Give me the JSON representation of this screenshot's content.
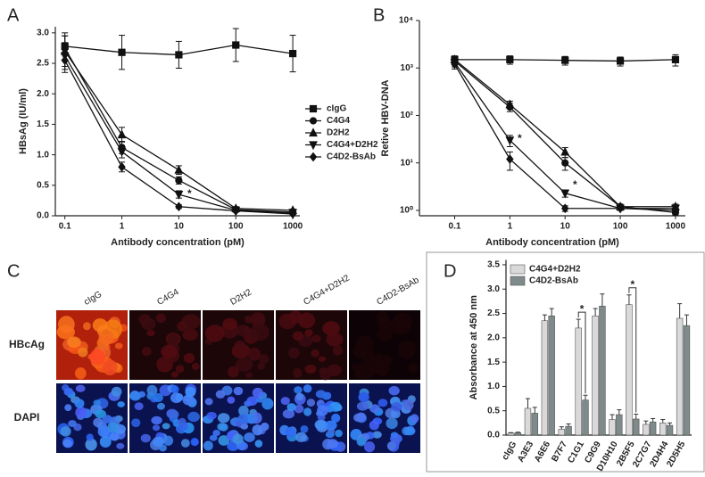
{
  "chart_data": [
    {
      "type": "line",
      "panel_label": "A",
      "xscale": "log",
      "yscale": "linear",
      "x_label": "Antibody concentration (pM)",
      "y_label": "HBsAg (IU/ml)",
      "x": [
        0.1,
        1,
        10,
        100,
        1000
      ],
      "xlim": [
        0.068,
        1330
      ],
      "xticks": [
        0.1,
        1,
        10,
        100,
        1000
      ],
      "ylim": [
        0,
        3.1
      ],
      "yticks": [
        {
          "value": 0,
          "label": "0.0"
        },
        {
          "value": 0.5,
          "label": "0.5"
        },
        {
          "value": 1,
          "label": "1.0"
        },
        {
          "value": 1.5,
          "label": "1.5"
        },
        {
          "value": 2,
          "label": "2.0"
        },
        {
          "value": 2.5,
          "label": "2.5"
        },
        {
          "value": 3,
          "label": "3.0"
        }
      ],
      "legend": true,
      "annotations": [
        "*"
      ],
      "series": [
        {
          "name": "cIgG",
          "color": "#111111",
          "marker": "square",
          "values": [
            2.78,
            2.68,
            2.64,
            2.8,
            2.66
          ],
          "errors": [
            0.22,
            0.28,
            0.22,
            0.27,
            0.3
          ]
        },
        {
          "name": "C4G4",
          "color": "#111111",
          "marker": "circle",
          "values": [
            2.75,
            1.12,
            0.58,
            0.1,
            0.06
          ],
          "errors": [
            0.2,
            0.1,
            0.06,
            0.03,
            0.02
          ]
        },
        {
          "name": "D2H2",
          "color": "#111111",
          "marker": "triangle",
          "values": [
            2.7,
            1.33,
            0.75,
            0.12,
            0.09
          ],
          "errors": [
            0.25,
            0.12,
            0.07,
            0.03,
            0.02
          ]
        },
        {
          "name": "C4G4+D2H2",
          "color": "#111111",
          "marker": "triangle-down",
          "values": [
            2.62,
            1.05,
            0.35,
            0.09,
            0.05
          ],
          "errors": [
            0.22,
            0.1,
            0.06,
            0.03,
            0.02
          ]
        },
        {
          "name": "C4D2-BsAb",
          "color": "#111111",
          "marker": "diamond",
          "values": [
            2.55,
            0.8,
            0.15,
            0.08,
            0.03
          ],
          "errors": [
            0.2,
            0.08,
            0.03,
            0.02,
            0.01
          ]
        }
      ]
    },
    {
      "type": "line",
      "panel_label": "B",
      "xscale": "log",
      "yscale": "log",
      "x_label": "Antibody concentration (pM)",
      "y_label": "Retive HBV-DNA",
      "x": [
        0.1,
        1,
        10,
        100,
        1000
      ],
      "xlim": [
        0.023,
        1510
      ],
      "xticks": [
        0.1,
        1,
        10,
        100,
        1000
      ],
      "ylim": [
        0.77,
        10000
      ],
      "yticks": [
        {
          "value": 1,
          "label": "10⁰"
        },
        {
          "value": 10,
          "label": "10¹"
        },
        {
          "value": 100,
          "label": "10²"
        },
        {
          "value": 1000,
          "label": "10³"
        },
        {
          "value": 10000,
          "label": "10⁴"
        }
      ],
      "legend": false,
      "annotations": [
        "*",
        "*"
      ],
      "series": [
        {
          "name": "cIgG",
          "color": "#111111",
          "marker": "square",
          "values": [
            1500,
            1500,
            1450,
            1400,
            1500
          ],
          "errors": [
            300,
            300,
            300,
            300,
            400
          ]
        },
        {
          "name": "C4G4",
          "color": "#111111",
          "marker": "circle",
          "values": [
            1400,
            150,
            10,
            1.2,
            0.9
          ],
          "errors": [
            250,
            30,
            3,
            0.15,
            0.1
          ]
        },
        {
          "name": "D2H2",
          "color": "#111111",
          "marker": "triangle",
          "values": [
            1500,
            170,
            17,
            1.2,
            1.2
          ],
          "errors": [
            250,
            30,
            4,
            0.15,
            0.15
          ]
        },
        {
          "name": "C4G4+D2H2",
          "color": "#111111",
          "marker": "triangle-down",
          "values": [
            1300,
            30,
            2.3,
            1.1,
            1.1
          ],
          "errors": [
            250,
            8,
            0.4,
            0.1,
            0.1
          ]
        },
        {
          "name": "C4D2-BsAb",
          "color": "#111111",
          "marker": "diamond",
          "values": [
            1200,
            12,
            1.1,
            1.1,
            1.0
          ],
          "errors": [
            250,
            5,
            0.15,
            0.1,
            0.1
          ]
        }
      ]
    },
    {
      "type": "bar",
      "panel_label": "D",
      "y_label": "Absorbance at 450 nm",
      "categories": [
        "cIgG",
        "A3E3",
        "A6E6",
        "B7F7",
        "C1G1",
        "C9G9",
        "D10H10",
        "2B5F5",
        "2C7G7",
        "2D4H4",
        "2D5H5"
      ],
      "ylim": [
        0,
        3.6
      ],
      "yticks": [
        {
          "value": 0,
          "label": "0.0"
        },
        {
          "value": 0.5,
          "label": "0.5"
        },
        {
          "value": 1,
          "label": "1.0"
        },
        {
          "value": 1.5,
          "label": "1.5"
        },
        {
          "value": 2,
          "label": "2.0"
        },
        {
          "value": 2.5,
          "label": "2.5"
        },
        {
          "value": 3,
          "label": "3.0"
        },
        {
          "value": 3.5,
          "label": "3.5"
        }
      ],
      "legend": true,
      "annotations": [
        "*",
        "*"
      ],
      "series": [
        {
          "name": "C4G4+D2H2",
          "color": "#d9d9d9",
          "values": [
            0.04,
            0.55,
            2.35,
            0.12,
            2.2,
            2.45,
            0.32,
            2.68,
            0.22,
            0.25,
            2.4
          ],
          "errors": [
            0.01,
            0.2,
            0.12,
            0.05,
            0.18,
            0.15,
            0.1,
            0.2,
            0.07,
            0.07,
            0.3
          ]
        },
        {
          "name": "C4D2-BsAb",
          "color": "#7f8b8b",
          "values": [
            0.05,
            0.45,
            2.45,
            0.18,
            0.72,
            2.65,
            0.42,
            0.33,
            0.27,
            0.2,
            2.25
          ],
          "errors": [
            0.01,
            0.12,
            0.15,
            0.05,
            0.1,
            0.25,
            0.1,
            0.1,
            0.07,
            0.05,
            0.22
          ]
        }
      ]
    }
  ],
  "image_panel": {
    "panel_label": "C",
    "columns": [
      "cIgG",
      "C4G4",
      "D2H2",
      "C4G4+D2H2",
      "C4D2-BsAb"
    ],
    "rows": [
      "HBcAg",
      "DAPI"
    ]
  }
}
